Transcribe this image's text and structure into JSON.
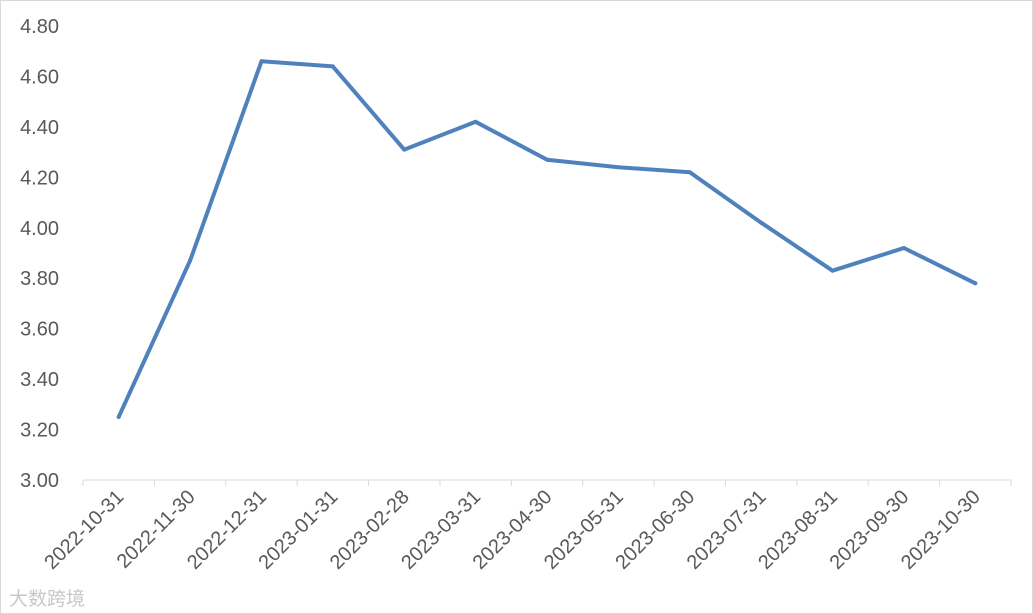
{
  "chart_data": {
    "type": "line",
    "categories": [
      "2022-10-31",
      "2022-11-30",
      "2022-12-31",
      "2023-01-31",
      "2023-02-28",
      "2023-03-31",
      "2023-04-30",
      "2023-05-31",
      "2023-06-30",
      "2023-07-31",
      "2023-08-31",
      "2023-09-30",
      "2023-10-30"
    ],
    "series": [
      {
        "values": [
          3.25,
          3.87,
          4.66,
          4.64,
          4.31,
          4.42,
          4.27,
          4.24,
          4.22,
          4.02,
          3.83,
          3.92,
          3.78
        ]
      }
    ],
    "ylim": [
      3.0,
      4.8
    ],
    "yticks": [
      "3.00",
      "3.20",
      "3.40",
      "3.60",
      "3.80",
      "4.00",
      "4.20",
      "4.40",
      "4.60",
      "4.80"
    ],
    "line_color": "#4f81bd",
    "grid": false,
    "legend": "none"
  },
  "watermark": "大数跨境"
}
